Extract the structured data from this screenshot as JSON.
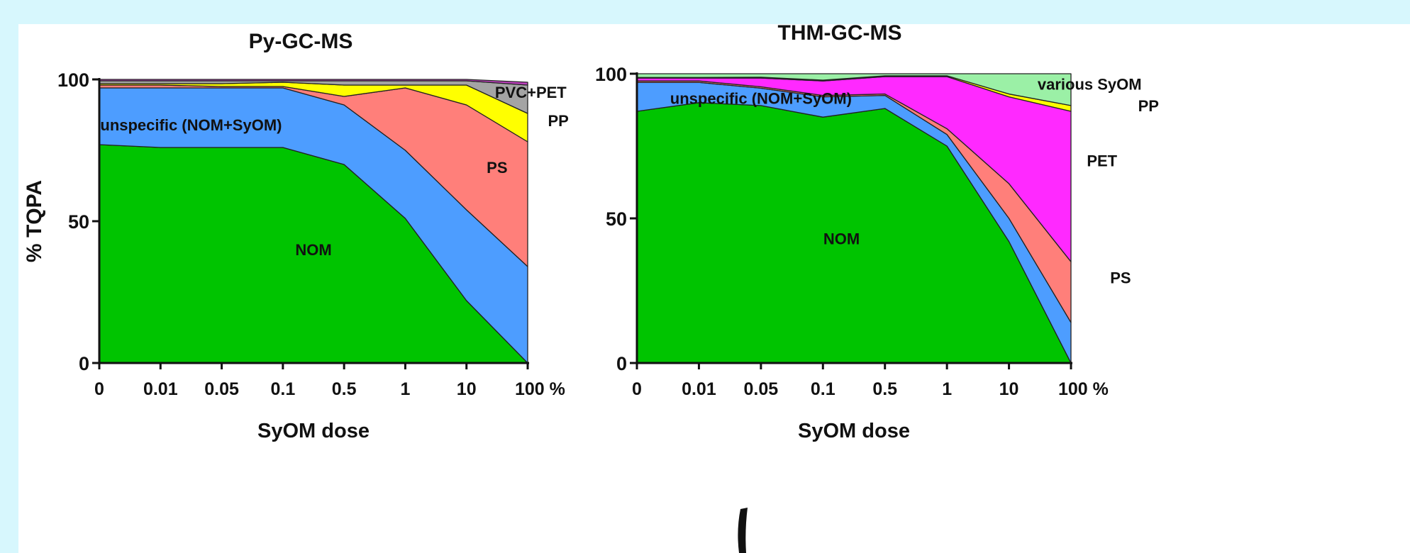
{
  "y_axis_label": "% TQPA",
  "colors": {
    "NOM": "#00c400",
    "unspecific": "#4d9dff",
    "PS": "#ff7f7a",
    "PP": "#ffff00",
    "PVC+PET": "#a4a4a4",
    "PET": "#ff29ff",
    "various SyOM": "#9bf0a6",
    "top": "#c040c0"
  },
  "chart_data": [
    {
      "type": "area",
      "stacked": true,
      "title": "Py-GC-MS",
      "xlabel": "SyOM dose",
      "ylabel": "% TQPA",
      "x": [
        "0",
        "0.01",
        "0.05",
        "0.1",
        "0.5",
        "1",
        "10",
        "100 %"
      ],
      "yticks": [
        "0",
        "50",
        "100"
      ],
      "ylim": [
        0,
        100
      ],
      "series": [
        {
          "name": "NOM",
          "values": [
            77,
            76,
            76,
            76,
            70,
            51,
            22,
            0
          ]
        },
        {
          "name": "unspecific (NOM+SyOM)",
          "values": [
            20,
            21,
            21,
            21,
            21,
            24,
            32,
            34
          ]
        },
        {
          "name": "PS",
          "values": [
            1,
            1,
            0.5,
            0.5,
            3,
            22,
            37,
            44
          ]
        },
        {
          "name": "PP",
          "values": [
            0.5,
            0.5,
            1,
            1.5,
            4,
            1,
            7,
            10
          ]
        },
        {
          "name": "PVC+PET",
          "values": [
            1,
            1,
            1,
            0.5,
            1.5,
            1.5,
            1.5,
            10
          ]
        },
        {
          "name": "",
          "values": [
            0.5,
            0.5,
            0.5,
            0.5,
            0.5,
            0.5,
            0.5,
            1
          ]
        }
      ]
    },
    {
      "type": "area",
      "stacked": true,
      "title": "THM-GC-MS",
      "xlabel": "SyOM dose",
      "ylabel": "",
      "x": [
        "0",
        "0.01",
        "0.05",
        "0.1",
        "0.5",
        "1",
        "10",
        "100 %"
      ],
      "yticks": [
        "0",
        "50",
        "100"
      ],
      "ylim": [
        0,
        100
      ],
      "series": [
        {
          "name": "NOM",
          "values": [
            87,
            90,
            89,
            85,
            88,
            75,
            42,
            0
          ]
        },
        {
          "name": "unspecific (NOM+SyOM)",
          "values": [
            10,
            7,
            6,
            7,
            4.5,
            4,
            8,
            14
          ]
        },
        {
          "name": "PS",
          "values": [
            0.5,
            0.5,
            0.5,
            0.5,
            0.5,
            2,
            12,
            21
          ]
        },
        {
          "name": "PET",
          "values": [
            1,
            1,
            3,
            5,
            6,
            18,
            30,
            52
          ]
        },
        {
          "name": "PP",
          "values": [
            0.2,
            0.2,
            0.3,
            0.3,
            0.3,
            0.3,
            1,
            2
          ]
        },
        {
          "name": "various SyOM",
          "values": [
            1.3,
            1.3,
            1.2,
            2.2,
            0.7,
            0.7,
            7,
            11
          ]
        }
      ]
    }
  ],
  "labels": [
    {
      "chart": 0,
      "text": "NOM",
      "x": 3.5,
      "y": 40
    },
    {
      "chart": 0,
      "text": "unspecific (NOM+SyOM)",
      "x": 1.5,
      "y": 84
    },
    {
      "chart": 0,
      "text": "PS",
      "x": 6.5,
      "y": 69
    },
    {
      "chart": 0,
      "text": "PP",
      "x": 7.5,
      "y": 85.5
    },
    {
      "chart": 0,
      "text": "PVC+PET",
      "x": 7.05,
      "y": 95.5
    },
    {
      "chart": 1,
      "text": "NOM",
      "x": 3.3,
      "y": 43
    },
    {
      "chart": 1,
      "text": "unspecific (NOM+SyOM)",
      "x": 2.0,
      "y": 91.5
    },
    {
      "chart": 1,
      "text": "PET",
      "x": 7.5,
      "y": 70
    },
    {
      "chart": 1,
      "text": "PS",
      "x": 7.8,
      "y": 29.5
    },
    {
      "chart": 1,
      "text": "various SyOM",
      "x": 7.3,
      "y": 96.5
    },
    {
      "chart": 1,
      "text": "PP",
      "x": 8.25,
      "y": 89
    }
  ]
}
